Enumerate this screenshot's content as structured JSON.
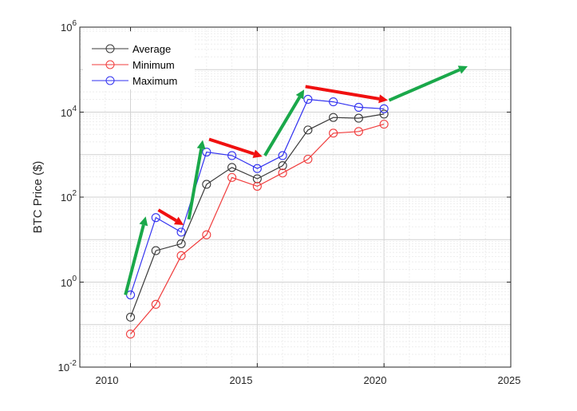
{
  "chart_data": {
    "type": "line",
    "title": "",
    "xlabel": "",
    "ylabel": "BTC Price ($)",
    "y_scale": "log",
    "xlim": [
      2008,
      2025
    ],
    "ylim_exp": [
      -2,
      6
    ],
    "x_ticks": [
      "2010",
      "2015",
      "2020",
      "2025"
    ],
    "y_ticks": [
      {
        "base": "10",
        "exp": "-2"
      },
      {
        "base": "10",
        "exp": "0"
      },
      {
        "base": "10",
        "exp": "2"
      },
      {
        "base": "10",
        "exp": "4"
      },
      {
        "base": "10",
        "exp": "6"
      }
    ],
    "grid": true,
    "legend_position": "top-left",
    "x": [
      2010,
      2011,
      2012,
      2013,
      2014,
      2015,
      2016,
      2017,
      2018,
      2019,
      2020
    ],
    "series": [
      {
        "name": "Average",
        "color": "#3a3a3a",
        "values": [
          0.15,
          5.5,
          8,
          200,
          500,
          270,
          550,
          3800,
          7500,
          7200,
          9000
        ]
      },
      {
        "name": "Minimum",
        "color": "#f03c3c",
        "values": [
          0.06,
          0.3,
          4.2,
          13,
          290,
          180,
          370,
          780,
          3200,
          3500,
          5200
        ]
      },
      {
        "name": "Maximum",
        "color": "#3232f0",
        "values": [
          0.5,
          33,
          15,
          1150,
          950,
          470,
          950,
          20000,
          17500,
          13000,
          12000
        ]
      }
    ],
    "annotations": [
      {
        "kind": "trend-up",
        "color": "#1aa84a",
        "from": [
          2009.8,
          0.5
        ],
        "to": [
          2010.6,
          35
        ]
      },
      {
        "kind": "trend-down",
        "color": "#f01010",
        "from": [
          2011.1,
          50
        ],
        "to": [
          2012.1,
          22
        ]
      },
      {
        "kind": "trend-up",
        "color": "#1aa84a",
        "from": [
          2012.3,
          30
        ],
        "to": [
          2012.85,
          2200
        ]
      },
      {
        "kind": "trend-down",
        "color": "#f01010",
        "from": [
          2013.1,
          2300
        ],
        "to": [
          2015.2,
          900
        ]
      },
      {
        "kind": "trend-up",
        "color": "#1aa84a",
        "from": [
          2015.3,
          950
        ],
        "to": [
          2016.85,
          34000
        ]
      },
      {
        "kind": "trend-down",
        "color": "#f01010",
        "from": [
          2016.9,
          40000
        ],
        "to": [
          2020.15,
          19000
        ]
      },
      {
        "kind": "trend-up",
        "color": "#1aa84a",
        "from": [
          2020.2,
          19000
        ],
        "to": [
          2023.3,
          120000
        ]
      }
    ]
  }
}
